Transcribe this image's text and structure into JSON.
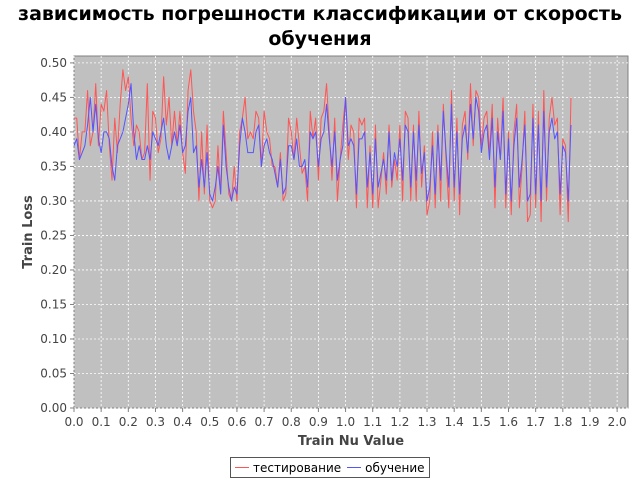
{
  "chart_data": {
    "type": "line",
    "title": "зависимость погрешности классификации от скорость обучения",
    "xlabel": "Train Nu Value",
    "ylabel": "Train Loss",
    "xlim": [
      0.0,
      2.04
    ],
    "ylim": [
      0.0,
      0.51
    ],
    "xticks": [
      "0.0",
      "0.1",
      "0.2",
      "0.3",
      "0.4",
      "0.5",
      "0.6",
      "0.7",
      "0.8",
      "0.9",
      "1.0",
      "1.1",
      "1.2",
      "1.3",
      "1.4",
      "1.5",
      "1.6",
      "1.7",
      "1.8",
      "1.9",
      "2.0"
    ],
    "yticks": [
      "0.00",
      "0.05",
      "0.10",
      "0.15",
      "0.20",
      "0.25",
      "0.30",
      "0.35",
      "0.40",
      "0.45",
      "0.50"
    ],
    "grid": true,
    "legend_position": "bottom",
    "background_color": "#c0c0c0",
    "x_step": 0.01,
    "series": [
      {
        "name": "тестирование",
        "color": "#ff5555",
        "values": [
          0.42,
          0.42,
          0.36,
          0.4,
          0.4,
          0.46,
          0.38,
          0.4,
          0.47,
          0.38,
          0.44,
          0.43,
          0.46,
          0.38,
          0.33,
          0.42,
          0.37,
          0.44,
          0.49,
          0.46,
          0.48,
          0.42,
          0.38,
          0.41,
          0.4,
          0.36,
          0.37,
          0.47,
          0.33,
          0.43,
          0.42,
          0.37,
          0.39,
          0.48,
          0.41,
          0.45,
          0.38,
          0.43,
          0.38,
          0.43,
          0.37,
          0.34,
          0.46,
          0.49,
          0.43,
          0.4,
          0.3,
          0.4,
          0.31,
          0.41,
          0.3,
          0.29,
          0.3,
          0.38,
          0.31,
          0.43,
          0.37,
          0.31,
          0.3,
          0.35,
          0.3,
          0.4,
          0.42,
          0.45,
          0.39,
          0.4,
          0.39,
          0.43,
          0.42,
          0.35,
          0.43,
          0.4,
          0.39,
          0.35,
          0.35,
          0.32,
          0.37,
          0.3,
          0.31,
          0.42,
          0.4,
          0.36,
          0.42,
          0.38,
          0.34,
          0.35,
          0.3,
          0.43,
          0.39,
          0.42,
          0.33,
          0.42,
          0.43,
          0.47,
          0.4,
          0.33,
          0.42,
          0.3,
          0.36,
          0.41,
          0.45,
          0.36,
          0.41,
          0.4,
          0.29,
          0.42,
          0.41,
          0.42,
          0.29,
          0.38,
          0.29,
          0.41,
          0.29,
          0.33,
          0.37,
          0.31,
          0.41,
          0.32,
          0.36,
          0.33,
          0.41,
          0.3,
          0.43,
          0.42,
          0.3,
          0.41,
          0.3,
          0.43,
          0.32,
          0.38,
          0.28,
          0.3,
          0.4,
          0.29,
          0.41,
          0.3,
          0.44,
          0.36,
          0.29,
          0.46,
          0.3,
          0.42,
          0.28,
          0.41,
          0.43,
          0.36,
          0.47,
          0.38,
          0.46,
          0.45,
          0.38,
          0.42,
          0.43,
          0.37,
          0.44,
          0.29,
          0.42,
          0.36,
          0.45,
          0.29,
          0.4,
          0.28,
          0.4,
          0.44,
          0.29,
          0.35,
          0.43,
          0.27,
          0.28,
          0.44,
          0.29,
          0.43,
          0.27,
          0.46,
          0.3,
          0.42,
          0.45,
          0.41,
          0.42,
          0.28,
          0.39,
          0.38,
          0.27,
          0.45
        ]
      },
      {
        "name": "обучение",
        "color": "#5555ff",
        "values": [
          0.38,
          0.39,
          0.36,
          0.37,
          0.38,
          0.41,
          0.45,
          0.4,
          0.44,
          0.39,
          0.37,
          0.4,
          0.4,
          0.39,
          0.35,
          0.33,
          0.38,
          0.39,
          0.4,
          0.42,
          0.44,
          0.47,
          0.4,
          0.36,
          0.38,
          0.36,
          0.36,
          0.38,
          0.36,
          0.4,
          0.39,
          0.38,
          0.4,
          0.42,
          0.38,
          0.36,
          0.38,
          0.4,
          0.38,
          0.41,
          0.37,
          0.38,
          0.43,
          0.45,
          0.37,
          0.38,
          0.32,
          0.36,
          0.32,
          0.37,
          0.31,
          0.3,
          0.32,
          0.35,
          0.31,
          0.41,
          0.35,
          0.32,
          0.3,
          0.32,
          0.31,
          0.38,
          0.42,
          0.4,
          0.37,
          0.37,
          0.37,
          0.4,
          0.41,
          0.35,
          0.38,
          0.39,
          0.37,
          0.36,
          0.34,
          0.32,
          0.36,
          0.31,
          0.32,
          0.38,
          0.38,
          0.36,
          0.39,
          0.35,
          0.35,
          0.36,
          0.32,
          0.4,
          0.39,
          0.4,
          0.35,
          0.39,
          0.4,
          0.44,
          0.39,
          0.35,
          0.4,
          0.33,
          0.36,
          0.38,
          0.45,
          0.38,
          0.39,
          0.38,
          0.31,
          0.39,
          0.39,
          0.4,
          0.32,
          0.37,
          0.31,
          0.39,
          0.32,
          0.34,
          0.36,
          0.33,
          0.4,
          0.33,
          0.37,
          0.35,
          0.39,
          0.33,
          0.41,
          0.4,
          0.32,
          0.4,
          0.33,
          0.41,
          0.34,
          0.37,
          0.3,
          0.32,
          0.38,
          0.31,
          0.4,
          0.33,
          0.43,
          0.37,
          0.32,
          0.44,
          0.32,
          0.4,
          0.31,
          0.39,
          0.41,
          0.37,
          0.44,
          0.39,
          0.45,
          0.43,
          0.37,
          0.4,
          0.41,
          0.36,
          0.42,
          0.32,
          0.4,
          0.36,
          0.43,
          0.31,
          0.39,
          0.3,
          0.38,
          0.42,
          0.32,
          0.36,
          0.41,
          0.3,
          0.31,
          0.42,
          0.31,
          0.41,
          0.3,
          0.43,
          0.32,
          0.4,
          0.42,
          0.39,
          0.4,
          0.31,
          0.38,
          0.37,
          0.3,
          0.41
        ]
      }
    ]
  }
}
